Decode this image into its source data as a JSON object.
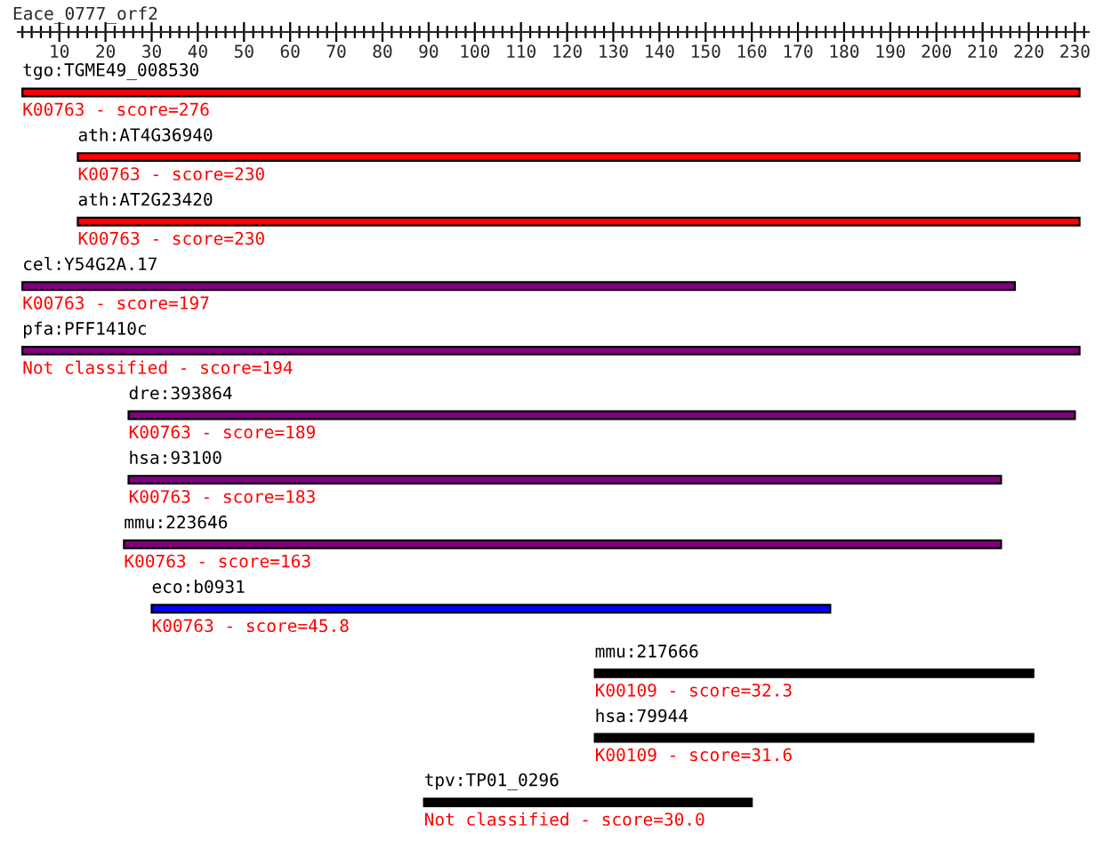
{
  "chart_data": {
    "type": "bar",
    "orientation": "horizontal",
    "title": "Eace_0777_orf2",
    "categories": [
      "tgo:TGME49_008530",
      "ath:AT4G36940",
      "ath:AT2G23420",
      "cel:Y54G2A.17",
      "pfa:PFF1410c",
      "dre:393864",
      "hsa:93100",
      "mmu:223646",
      "eco:b0931",
      "mmu:217666",
      "hsa:79944",
      "tpv:TP01_0296"
    ],
    "base": [
      2,
      14,
      14,
      2,
      2,
      25,
      25,
      24,
      30,
      126,
      126,
      89
    ],
    "values": [
      229,
      217,
      217,
      215,
      229,
      205,
      189,
      190,
      147,
      95,
      95,
      71
    ],
    "colors": [
      "#ff0000",
      "#ff0000",
      "#ff0000",
      "#800080",
      "#800080",
      "#800080",
      "#800080",
      "#800080",
      "#0000ff",
      "#000000",
      "#000000",
      "#000000"
    ],
    "annotations": [
      "K00763 - score=276",
      "K00763 - score=230",
      "K00763 - score=230",
      "K00763 - score=197",
      "Not classified - score=194",
      "K00763 - score=189",
      "K00763 - score=183",
      "K00763 - score=163",
      "K00763 - score=45.8",
      "K00109 - score=32.3",
      "K00109 - score=31.6",
      "Not classified - score=30.0"
    ],
    "xlim": [
      1,
      233
    ],
    "xticks": [
      10,
      20,
      30,
      40,
      50,
      60,
      70,
      80,
      90,
      100,
      110,
      120,
      130,
      140,
      150,
      160,
      170,
      180,
      190,
      200,
      210,
      220,
      230,
      {
        "value": 2,
        "label": null
      },
      {
        "value": 4,
        "label": null
      },
      {
        "value": 6,
        "label": null
      },
      {
        "value": 8,
        "label": null
      },
      {
        "value": 12,
        "label": null
      },
      {
        "value": 14,
        "label": null
      },
      {
        "value": 16,
        "label": null
      },
      {
        "value": 18,
        "label": null
      },
      {
        "value": 22,
        "label": null
      },
      {
        "value": 24,
        "label": null
      },
      {
        "value": 26,
        "label": null
      },
      {
        "value": 28,
        "label": null
      },
      {
        "value": 32,
        "label": null
      },
      {
        "value": 34,
        "label": null
      },
      {
        "value": 36,
        "label": null
      },
      {
        "value": 38,
        "label": null
      },
      {
        "value": 42,
        "label": null
      },
      {
        "value": 44,
        "label": null
      },
      {
        "value": 46,
        "label": null
      },
      {
        "value": 48,
        "label": null
      },
      {
        "value": 52,
        "label": null
      },
      {
        "value": 54,
        "label": null
      },
      {
        "value": 56,
        "label": null
      },
      {
        "value": 58,
        "label": null
      },
      {
        "value": 62,
        "label": null
      },
      {
        "value": 64,
        "label": null
      },
      {
        "value": 66,
        "label": null
      },
      {
        "value": 68,
        "label": null
      },
      {
        "value": 72,
        "label": null
      },
      {
        "value": 74,
        "label": null
      },
      {
        "value": 76,
        "label": null
      },
      {
        "value": 78,
        "label": null
      },
      {
        "value": 82,
        "label": null
      },
      {
        "value": 84,
        "label": null
      },
      {
        "value": 86,
        "label": null
      },
      {
        "value": 88,
        "label": null
      },
      {
        "value": 92,
        "label": null
      },
      {
        "value": 94,
        "label": null
      },
      {
        "value": 96,
        "label": null
      },
      {
        "value": 98,
        "label": null
      },
      {
        "value": 102,
        "label": null
      },
      {
        "value": 104,
        "label": null
      },
      {
        "value": 106,
        "label": null
      },
      {
        "value": 108,
        "label": null
      },
      {
        "value": 112,
        "label": null
      },
      {
        "value": 114,
        "label": null
      },
      {
        "value": 116,
        "label": null
      },
      {
        "value": 118,
        "label": null
      },
      {
        "value": 122,
        "label": null
      },
      {
        "value": 124,
        "label": null
      },
      {
        "value": 126,
        "label": null
      },
      {
        "value": 128,
        "label": null
      },
      {
        "value": 132,
        "label": null
      },
      {
        "value": 134,
        "label": null
      },
      {
        "value": 136,
        "label": null
      },
      {
        "value": 138,
        "label": null
      },
      {
        "value": 142,
        "label": null
      },
      {
        "value": 144,
        "label": null
      },
      {
        "value": 146,
        "label": null
      },
      {
        "value": 148,
        "label": null
      },
      {
        "value": 152,
        "label": null
      },
      {
        "value": 154,
        "label": null
      },
      {
        "value": 156,
        "label": null
      },
      {
        "value": 158,
        "label": null
      },
      {
        "value": 162,
        "label": null
      },
      {
        "value": 164,
        "label": null
      },
      {
        "value": 166,
        "label": null
      },
      {
        "value": 168,
        "label": null
      },
      {
        "value": 172,
        "label": null
      },
      {
        "value": 174,
        "label": null
      },
      {
        "value": 176,
        "label": null
      },
      {
        "value": 178,
        "label": null
      },
      {
        "value": 182,
        "label": null
      },
      {
        "value": 184,
        "label": null
      },
      {
        "value": 186,
        "label": null
      },
      {
        "value": 188,
        "label": null
      },
      {
        "value": 192,
        "label": null
      },
      {
        "value": 194,
        "label": null
      },
      {
        "value": 196,
        "label": null
      },
      {
        "value": 198,
        "label": null
      },
      {
        "value": 202,
        "label": null
      },
      {
        "value": 204,
        "label": null
      },
      {
        "value": 206,
        "label": null
      },
      {
        "value": 208,
        "label": null
      },
      {
        "value": 212,
        "label": null
      },
      {
        "value": 214,
        "label": null
      },
      {
        "value": 216,
        "label": null
      },
      {
        "value": 218,
        "label": null
      },
      {
        "value": 222,
        "label": null
      },
      {
        "value": 224,
        "label": null
      },
      {
        "value": 226,
        "label": null
      },
      {
        "value": 228,
        "label": null
      },
      {
        "value": 232,
        "label": null
      }
    ],
    "grid": false,
    "legend": false
  }
}
